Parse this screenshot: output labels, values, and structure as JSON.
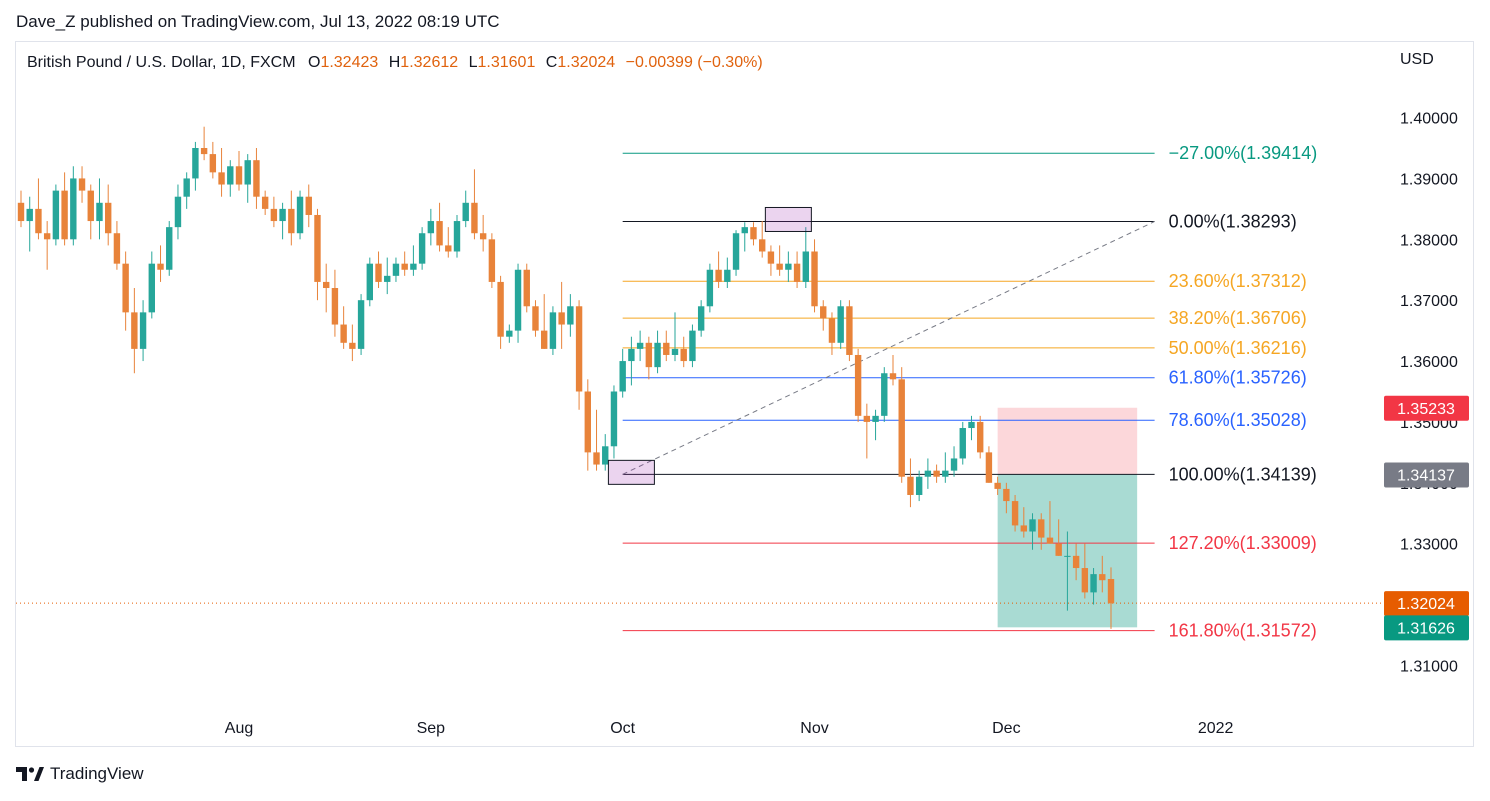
{
  "header": {
    "publisher": "Dave_Z published on TradingView.com, Jul 13, 2022 08:19 UTC"
  },
  "legend": {
    "symbol": "British Pound / U.S. Dollar, 1D, FXCM",
    "open_label": "O",
    "open": "1.32423",
    "high_label": "H",
    "high": "1.32612",
    "low_label": "L",
    "low": "1.31601",
    "close_label": "C",
    "close": "1.32024",
    "change": "−0.00399 (−0.30%)"
  },
  "footer": {
    "brand": "TradingView"
  },
  "colors": {
    "up": "#26a69a",
    "down": "#e8833a",
    "fib_teal": "#089981",
    "fib_black": "#131722",
    "fib_orange": "#f5a623",
    "fib_blue": "#2962ff",
    "fib_red": "#f23645",
    "badge_red": "#f23645",
    "badge_gray": "#787b86",
    "badge_orange": "#e65c00",
    "badge_teal": "#089981"
  },
  "chart_data": {
    "type": "candlestick",
    "currency": "USD",
    "price_axis": {
      "range": [
        1.3035,
        1.4065
      ],
      "ticks": [
        "1.40000",
        "1.39000",
        "1.38000",
        "1.37000",
        "1.36000",
        "1.35000",
        "1.34000",
        "1.33000",
        "1.32000",
        "1.31000"
      ]
    },
    "time_axis": {
      "labels": [
        {
          "label": "Aug",
          "index": 25
        },
        {
          "label": "Sep",
          "index": 47
        },
        {
          "label": "Oct",
          "index": 69
        },
        {
          "label": "Nov",
          "index": 91
        },
        {
          "label": "Dec",
          "index": 113
        },
        {
          "label": "2022",
          "index": 137
        }
      ]
    },
    "candles": [
      [
        1.386,
        1.388,
        1.382,
        1.383
      ],
      [
        1.383,
        1.387,
        1.378,
        1.385
      ],
      [
        1.385,
        1.39,
        1.38,
        1.381
      ],
      [
        1.381,
        1.383,
        1.375,
        1.38
      ],
      [
        1.38,
        1.389,
        1.379,
        1.388
      ],
      [
        1.388,
        1.391,
        1.379,
        1.38
      ],
      [
        1.38,
        1.392,
        1.379,
        1.39
      ],
      [
        1.39,
        1.392,
        1.386,
        1.388
      ],
      [
        1.388,
        1.389,
        1.38,
        1.383
      ],
      [
        1.383,
        1.39,
        1.38,
        1.386
      ],
      [
        1.386,
        1.389,
        1.379,
        1.381
      ],
      [
        1.381,
        1.383,
        1.375,
        1.376
      ],
      [
        1.376,
        1.378,
        1.365,
        1.368
      ],
      [
        1.368,
        1.372,
        1.358,
        1.362
      ],
      [
        1.362,
        1.37,
        1.36,
        1.368
      ],
      [
        1.368,
        1.378,
        1.367,
        1.376
      ],
      [
        1.376,
        1.379,
        1.373,
        1.375
      ],
      [
        1.375,
        1.383,
        1.374,
        1.382
      ],
      [
        1.382,
        1.389,
        1.38,
        1.387
      ],
      [
        1.387,
        1.391,
        1.385,
        1.39
      ],
      [
        1.39,
        1.396,
        1.388,
        1.395
      ],
      [
        1.395,
        1.3985,
        1.393,
        1.394
      ],
      [
        1.394,
        1.396,
        1.39,
        1.391
      ],
      [
        1.391,
        1.395,
        1.387,
        1.389
      ],
      [
        1.389,
        1.393,
        1.387,
        1.392
      ],
      [
        1.392,
        1.3945,
        1.388,
        1.389
      ],
      [
        1.389,
        1.394,
        1.386,
        1.393
      ],
      [
        1.393,
        1.395,
        1.385,
        1.387
      ],
      [
        1.387,
        1.388,
        1.384,
        1.385
      ],
      [
        1.385,
        1.387,
        1.382,
        1.383
      ],
      [
        1.383,
        1.386,
        1.38,
        1.385
      ],
      [
        1.385,
        1.388,
        1.379,
        1.381
      ],
      [
        1.381,
        1.388,
        1.38,
        1.387
      ],
      [
        1.387,
        1.389,
        1.382,
        1.384
      ],
      [
        1.384,
        1.385,
        1.37,
        1.373
      ],
      [
        1.373,
        1.376,
        1.368,
        1.372
      ],
      [
        1.372,
        1.375,
        1.364,
        1.366
      ],
      [
        1.366,
        1.369,
        1.362,
        1.363
      ],
      [
        1.363,
        1.366,
        1.36,
        1.362
      ],
      [
        1.362,
        1.371,
        1.361,
        1.37
      ],
      [
        1.37,
        1.377,
        1.369,
        1.376
      ],
      [
        1.376,
        1.378,
        1.372,
        1.373
      ],
      [
        1.373,
        1.377,
        1.371,
        1.374
      ],
      [
        1.374,
        1.377,
        1.373,
        1.376
      ],
      [
        1.376,
        1.378,
        1.374,
        1.375
      ],
      [
        1.375,
        1.379,
        1.374,
        1.376
      ],
      [
        1.376,
        1.382,
        1.375,
        1.381
      ],
      [
        1.381,
        1.385,
        1.379,
        1.383
      ],
      [
        1.383,
        1.386,
        1.378,
        1.379
      ],
      [
        1.379,
        1.382,
        1.377,
        1.378
      ],
      [
        1.378,
        1.384,
        1.377,
        1.383
      ],
      [
        1.383,
        1.388,
        1.382,
        1.386
      ],
      [
        1.386,
        1.3915,
        1.38,
        1.381
      ],
      [
        1.381,
        1.384,
        1.378,
        1.38
      ],
      [
        1.38,
        1.381,
        1.372,
        1.373
      ],
      [
        1.373,
        1.374,
        1.362,
        1.364
      ],
      [
        1.364,
        1.366,
        1.363,
        1.365
      ],
      [
        1.365,
        1.376,
        1.363,
        1.375
      ],
      [
        1.375,
        1.376,
        1.368,
        1.369
      ],
      [
        1.369,
        1.37,
        1.364,
        1.365
      ],
      [
        1.365,
        1.371,
        1.362,
        1.362
      ],
      [
        1.362,
        1.369,
        1.361,
        1.368
      ],
      [
        1.368,
        1.373,
        1.362,
        1.366
      ],
      [
        1.366,
        1.371,
        1.364,
        1.369
      ],
      [
        1.369,
        1.37,
        1.352,
        1.355
      ],
      [
        1.355,
        1.357,
        1.342,
        1.345
      ],
      [
        1.345,
        1.352,
        1.342,
        1.343
      ],
      [
        1.343,
        1.348,
        1.342,
        1.346
      ],
      [
        1.346,
        1.356,
        1.344,
        1.355
      ],
      [
        1.355,
        1.362,
        1.354,
        1.36
      ],
      [
        1.36,
        1.364,
        1.356,
        1.362
      ],
      [
        1.362,
        1.365,
        1.36,
        1.363
      ],
      [
        1.363,
        1.364,
        1.357,
        1.359
      ],
      [
        1.359,
        1.365,
        1.358,
        1.363
      ],
      [
        1.363,
        1.365,
        1.36,
        1.361
      ],
      [
        1.361,
        1.368,
        1.36,
        1.362
      ],
      [
        1.362,
        1.364,
        1.359,
        1.36
      ],
      [
        1.36,
        1.366,
        1.359,
        1.365
      ],
      [
        1.365,
        1.37,
        1.364,
        1.369
      ],
      [
        1.369,
        1.376,
        1.368,
        1.375
      ],
      [
        1.375,
        1.378,
        1.372,
        1.373
      ],
      [
        1.373,
        1.377,
        1.372,
        1.375
      ],
      [
        1.375,
        1.3815,
        1.374,
        1.381
      ],
      [
        1.381,
        1.3828,
        1.378,
        1.382
      ],
      [
        1.382,
        1.3828,
        1.379,
        1.38
      ],
      [
        1.38,
        1.383,
        1.377,
        1.378
      ],
      [
        1.378,
        1.379,
        1.374,
        1.376
      ],
      [
        1.376,
        1.379,
        1.374,
        1.375
      ],
      [
        1.375,
        1.378,
        1.373,
        1.376
      ],
      [
        1.376,
        1.378,
        1.372,
        1.373
      ],
      [
        1.373,
        1.382,
        1.372,
        1.378
      ],
      [
        1.378,
        1.38,
        1.368,
        1.369
      ],
      [
        1.369,
        1.37,
        1.365,
        1.367
      ],
      [
        1.367,
        1.368,
        1.361,
        1.363
      ],
      [
        1.363,
        1.37,
        1.362,
        1.369
      ],
      [
        1.369,
        1.37,
        1.36,
        1.361
      ],
      [
        1.361,
        1.362,
        1.35,
        1.351
      ],
      [
        1.351,
        1.353,
        1.344,
        1.35
      ],
      [
        1.35,
        1.352,
        1.347,
        1.351
      ],
      [
        1.351,
        1.359,
        1.35,
        1.358
      ],
      [
        1.358,
        1.361,
        1.356,
        1.357
      ],
      [
        1.357,
        1.359,
        1.34,
        1.341
      ],
      [
        1.341,
        1.344,
        1.336,
        1.338
      ],
      [
        1.338,
        1.342,
        1.337,
        1.341
      ],
      [
        1.341,
        1.344,
        1.339,
        1.342
      ],
      [
        1.342,
        1.343,
        1.34,
        1.341
      ],
      [
        1.341,
        1.345,
        1.34,
        1.342
      ],
      [
        1.342,
        1.346,
        1.341,
        1.344
      ],
      [
        1.344,
        1.35,
        1.343,
        1.349
      ],
      [
        1.349,
        1.351,
        1.347,
        1.35
      ],
      [
        1.35,
        1.351,
        1.344,
        1.345
      ],
      [
        1.345,
        1.346,
        1.34,
        1.34
      ],
      [
        1.34,
        1.341,
        1.338,
        1.339
      ],
      [
        1.339,
        1.34,
        1.335,
        1.337
      ],
      [
        1.337,
        1.338,
        1.332,
        1.333
      ],
      [
        1.333,
        1.336,
        1.331,
        1.332
      ],
      [
        1.332,
        1.335,
        1.329,
        1.334
      ],
      [
        1.334,
        1.335,
        1.329,
        1.331
      ],
      [
        1.331,
        1.337,
        1.33,
        1.33
      ],
      [
        1.33,
        1.334,
        1.328,
        1.328
      ],
      [
        1.328,
        1.332,
        1.319,
        1.328
      ],
      [
        1.328,
        1.33,
        1.324,
        1.326
      ],
      [
        1.326,
        1.33,
        1.321,
        1.322
      ],
      [
        1.322,
        1.326,
        1.32,
        1.325
      ],
      [
        1.325,
        1.328,
        1.322,
        1.324
      ],
      [
        1.3242,
        1.3261,
        1.316,
        1.3202
      ]
    ],
    "fibonacci": {
      "levels": [
        {
          "text": "−27.00%(1.39414)",
          "price": 1.39414,
          "color": "#089981"
        },
        {
          "text": "0.00%(1.38293)",
          "price": 1.38293,
          "color": "#131722"
        },
        {
          "text": "23.60%(1.37312)",
          "price": 1.37312,
          "color": "#f5a623"
        },
        {
          "text": "38.20%(1.36706)",
          "price": 1.36706,
          "color": "#f5a623"
        },
        {
          "text": "50.00%(1.36216)",
          "price": 1.36216,
          "color": "#f5a623"
        },
        {
          "text": "61.80%(1.35726)",
          "price": 1.35726,
          "color": "#2962ff"
        },
        {
          "text": "78.60%(1.35028)",
          "price": 1.35028,
          "color": "#2962ff"
        },
        {
          "text": "100.00%(1.34139)",
          "price": 1.34139,
          "color": "#131722"
        },
        {
          "text": "127.20%(1.33009)",
          "price": 1.33009,
          "color": "#f23645"
        },
        {
          "text": "161.80%(1.31572)",
          "price": 1.31572,
          "color": "#f23645"
        }
      ],
      "start_index": 69,
      "end_index": 130,
      "trend_from": {
        "index": 69,
        "price": 1.34139
      },
      "trend_to": {
        "index": 130,
        "price": 1.38293
      },
      "anchor_high": {
        "index": 88,
        "price": 1.38293
      },
      "anchor_low": {
        "index": 70,
        "price": 1.34139
      }
    },
    "position": {
      "start_index": 112,
      "end_index": 128,
      "entry": 1.34137,
      "stop": 1.35233,
      "target": 1.31626
    },
    "price_badges": [
      {
        "text": "1.35233",
        "price": 1.35233,
        "color": "#f23645"
      },
      {
        "text": "1.34137",
        "price": 1.34137,
        "color": "#787b86"
      },
      {
        "text": "1.32024",
        "price": 1.32024,
        "color": "#e65c00"
      },
      {
        "text": "1.31626",
        "price": 1.31626,
        "color": "#089981"
      }
    ],
    "last_price": 1.32024
  }
}
